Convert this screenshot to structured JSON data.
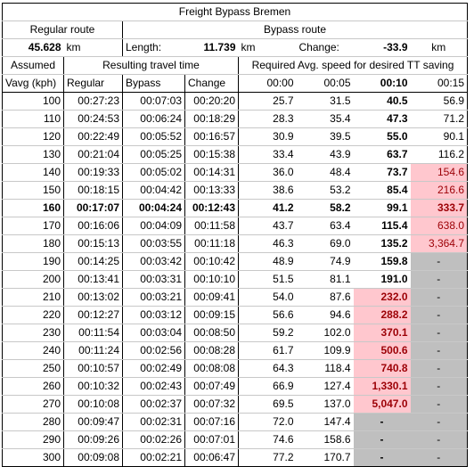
{
  "title": "Freight Bypass Bremen",
  "regular": {
    "label": "Regular route",
    "value": "45.628",
    "unit": "km"
  },
  "bypass": {
    "label": "Bypass route",
    "length_label": "Length:",
    "length_value": "11.739",
    "length_unit": "km",
    "change_label": "Change:",
    "change_value": "-33.9",
    "change_unit": "km"
  },
  "headers": {
    "assumed": "Assumed",
    "vavg": "Vavg (kph)",
    "resulting": "Resulting travel time",
    "regular": "Regular",
    "bypass": "Bypass",
    "change": "Change",
    "required": "Required Avg. speed for desired TT saving",
    "s0": "00:00",
    "s5": "00:05",
    "s10": "00:10",
    "s15": "00:15"
  },
  "colors": {
    "pink_fill": "#ffc7ce",
    "pink_text": "#9c0006",
    "gray_fill": "#bfbfbf"
  },
  "rows": [
    {
      "v": "100",
      "reg": "00:27:23",
      "byp": "00:07:03",
      "chg": "00:20:20",
      "s0": "25.7",
      "s5": "31.5",
      "s10": "40.5",
      "s15": "56.9",
      "p10": false,
      "p15": false,
      "g10": false,
      "g15": false,
      "bold": false
    },
    {
      "v": "110",
      "reg": "00:24:53",
      "byp": "00:06:24",
      "chg": "00:18:29",
      "s0": "28.3",
      "s5": "35.4",
      "s10": "47.3",
      "s15": "71.2",
      "p10": false,
      "p15": false,
      "g10": false,
      "g15": false,
      "bold": false
    },
    {
      "v": "120",
      "reg": "00:22:49",
      "byp": "00:05:52",
      "chg": "00:16:57",
      "s0": "30.9",
      "s5": "39.5",
      "s10": "55.0",
      "s15": "90.1",
      "p10": false,
      "p15": false,
      "g10": false,
      "g15": false,
      "bold": false
    },
    {
      "v": "130",
      "reg": "00:21:04",
      "byp": "00:05:25",
      "chg": "00:15:38",
      "s0": "33.4",
      "s5": "43.9",
      "s10": "63.7",
      "s15": "116.2",
      "p10": false,
      "p15": false,
      "g10": false,
      "g15": false,
      "bold": false
    },
    {
      "v": "140",
      "reg": "00:19:33",
      "byp": "00:05:02",
      "chg": "00:14:31",
      "s0": "36.0",
      "s5": "48.4",
      "s10": "73.7",
      "s15": "154.6",
      "p10": false,
      "p15": true,
      "g10": false,
      "g15": false,
      "bold": false
    },
    {
      "v": "150",
      "reg": "00:18:15",
      "byp": "00:04:42",
      "chg": "00:13:33",
      "s0": "38.6",
      "s5": "53.2",
      "s10": "85.4",
      "s15": "216.6",
      "p10": false,
      "p15": true,
      "g10": false,
      "g15": false,
      "bold": false
    },
    {
      "v": "160",
      "reg": "00:17:07",
      "byp": "00:04:24",
      "chg": "00:12:43",
      "s0": "41.2",
      "s5": "58.2",
      "s10": "99.1",
      "s15": "333.7",
      "p10": false,
      "p15": true,
      "g10": false,
      "g15": false,
      "bold": true
    },
    {
      "v": "170",
      "reg": "00:16:06",
      "byp": "00:04:09",
      "chg": "00:11:58",
      "s0": "43.7",
      "s5": "63.4",
      "s10": "115.4",
      "s15": "638.0",
      "p10": false,
      "p15": true,
      "g10": false,
      "g15": false,
      "bold": false
    },
    {
      "v": "180",
      "reg": "00:15:13",
      "byp": "00:03:55",
      "chg": "00:11:18",
      "s0": "46.3",
      "s5": "69.0",
      "s10": "135.2",
      "s15": "3,364.7",
      "p10": false,
      "p15": true,
      "g10": false,
      "g15": false,
      "bold": false
    },
    {
      "v": "190",
      "reg": "00:14:25",
      "byp": "00:03:42",
      "chg": "00:10:42",
      "s0": "48.9",
      "s5": "74.9",
      "s10": "159.8",
      "s15": "-",
      "p10": false,
      "p15": false,
      "g10": false,
      "g15": true,
      "bold": false
    },
    {
      "v": "200",
      "reg": "00:13:41",
      "byp": "00:03:31",
      "chg": "00:10:10",
      "s0": "51.5",
      "s5": "81.1",
      "s10": "191.0",
      "s15": "-",
      "p10": false,
      "p15": false,
      "g10": false,
      "g15": true,
      "bold": false
    },
    {
      "v": "210",
      "reg": "00:13:02",
      "byp": "00:03:21",
      "chg": "00:09:41",
      "s0": "54.0",
      "s5": "87.6",
      "s10": "232.0",
      "s15": "-",
      "p10": true,
      "p15": false,
      "g10": false,
      "g15": true,
      "bold": false
    },
    {
      "v": "220",
      "reg": "00:12:27",
      "byp": "00:03:12",
      "chg": "00:09:15",
      "s0": "56.6",
      "s5": "94.6",
      "s10": "288.2",
      "s15": "-",
      "p10": true,
      "p15": false,
      "g10": false,
      "g15": true,
      "bold": false
    },
    {
      "v": "230",
      "reg": "00:11:54",
      "byp": "00:03:04",
      "chg": "00:08:50",
      "s0": "59.2",
      "s5": "102.0",
      "s10": "370.1",
      "s15": "-",
      "p10": true,
      "p15": false,
      "g10": false,
      "g15": true,
      "bold": false
    },
    {
      "v": "240",
      "reg": "00:11:24",
      "byp": "00:02:56",
      "chg": "00:08:28",
      "s0": "61.7",
      "s5": "109.9",
      "s10": "500.6",
      "s15": "-",
      "p10": true,
      "p15": false,
      "g10": false,
      "g15": true,
      "bold": false
    },
    {
      "v": "250",
      "reg": "00:10:57",
      "byp": "00:02:49",
      "chg": "00:08:08",
      "s0": "64.3",
      "s5": "118.4",
      "s10": "740.8",
      "s15": "-",
      "p10": true,
      "p15": false,
      "g10": false,
      "g15": true,
      "bold": false
    },
    {
      "v": "260",
      "reg": "00:10:32",
      "byp": "00:02:43",
      "chg": "00:07:49",
      "s0": "66.9",
      "s5": "127.4",
      "s10": "1,330.1",
      "s15": "-",
      "p10": true,
      "p15": false,
      "g10": false,
      "g15": true,
      "bold": false
    },
    {
      "v": "270",
      "reg": "00:10:08",
      "byp": "00:02:37",
      "chg": "00:07:32",
      "s0": "69.5",
      "s5": "137.0",
      "s10": "5,047.0",
      "s15": "-",
      "p10": true,
      "p15": false,
      "g10": false,
      "g15": true,
      "bold": false
    },
    {
      "v": "280",
      "reg": "00:09:47",
      "byp": "00:02:31",
      "chg": "00:07:16",
      "s0": "72.0",
      "s5": "147.4",
      "s10": "-",
      "s15": "-",
      "p10": false,
      "p15": false,
      "g10": true,
      "g15": true,
      "bold": false
    },
    {
      "v": "290",
      "reg": "00:09:26",
      "byp": "00:02:26",
      "chg": "00:07:01",
      "s0": "74.6",
      "s5": "158.6",
      "s10": "-",
      "s15": "-",
      "p10": false,
      "p15": false,
      "g10": true,
      "g15": true,
      "bold": false
    },
    {
      "v": "300",
      "reg": "00:09:08",
      "byp": "00:02:21",
      "chg": "00:06:47",
      "s0": "77.2",
      "s5": "170.7",
      "s10": "-",
      "s15": "-",
      "p10": false,
      "p15": false,
      "g10": true,
      "g15": true,
      "bold": false
    }
  ]
}
